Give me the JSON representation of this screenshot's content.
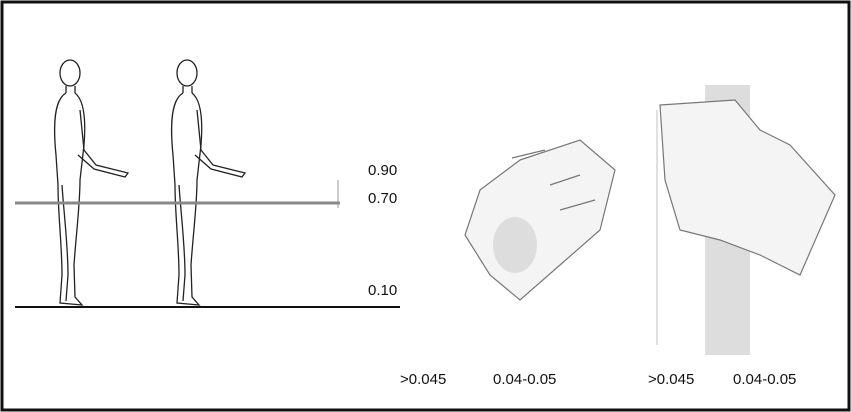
{
  "heights": [
    "0.90",
    "0.70",
    "0.10"
  ],
  "grips": [
    {
      "outer": ">0.045",
      "inner": "0.04-0.05"
    },
    {
      "outer": ">0.045",
      "inner": "0.04-0.05"
    }
  ]
}
